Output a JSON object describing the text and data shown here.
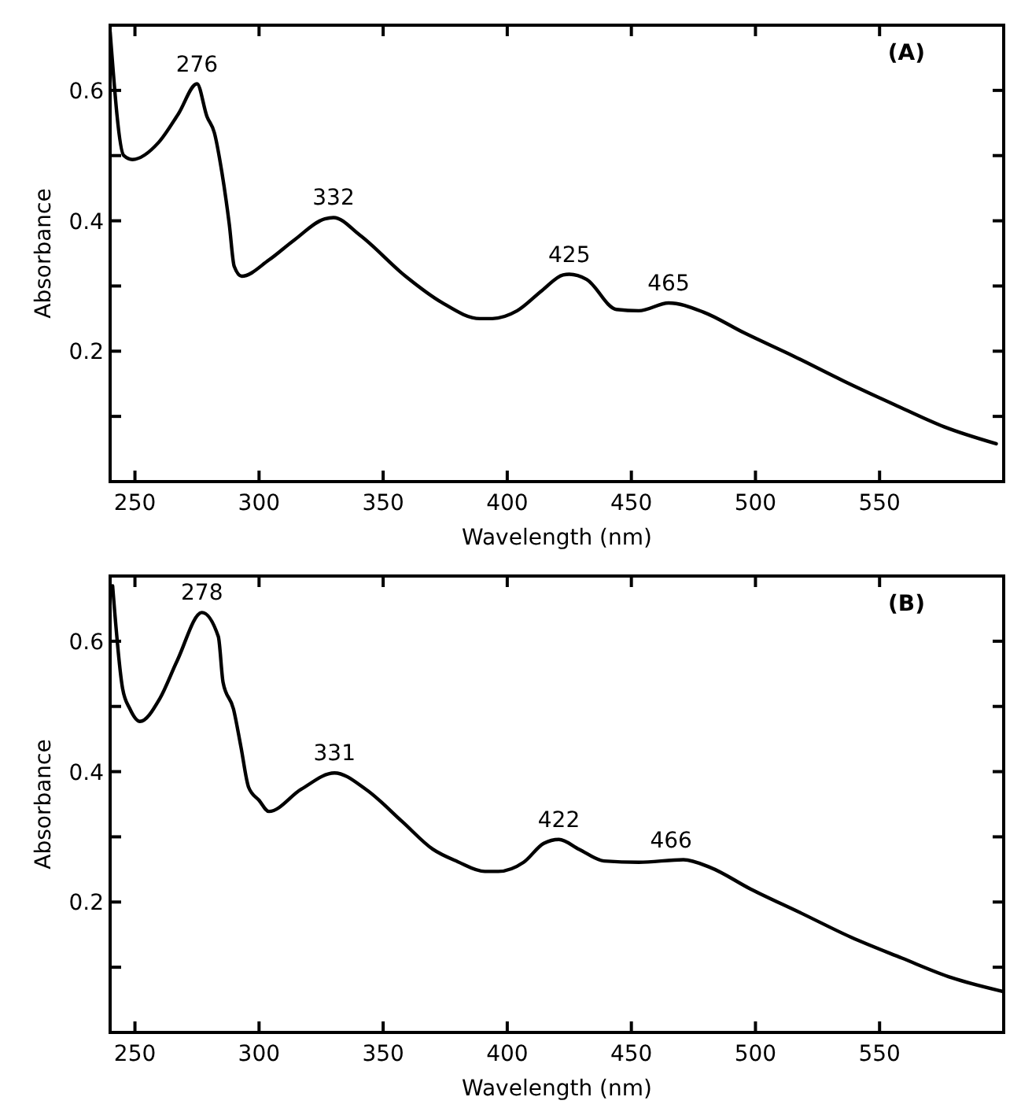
{
  "chart_data": [
    {
      "type": "line",
      "xlabel": "Wavelength (nm)",
      "ylabel": "Absorbance",
      "xlim": [
        240,
        600
      ],
      "ylim": [
        0,
        0.7
      ],
      "xticks": [
        250,
        300,
        350,
        400,
        450,
        500,
        550
      ],
      "yticks": [
        {
          "value": 0.1,
          "label": null
        },
        0.2,
        {
          "value": 0.3,
          "label": null
        },
        0.4,
        {
          "value": 0.5,
          "label": null
        },
        0.6
      ],
      "grid": false,
      "marker": "none",
      "line_style": "solid",
      "series": [
        {
          "color": "#000000",
          "x": [
            240,
            245.5,
            249,
            259.5,
            267.5,
            275,
            279,
            282,
            285,
            288,
            290,
            293,
            304,
            314,
            326.5,
            330,
            340.6,
            359,
            373.5,
            389,
            394,
            404,
            414,
            422.5,
            425,
            432,
            444,
            453,
            465,
            479,
            495.5,
            515.6,
            535.7,
            556,
            576,
            597
          ],
          "values": [
            0.69,
            0.5,
            0.494,
            0.52,
            0.564,
            0.61,
            0.56,
            0.535,
            0.475,
            0.395,
            0.33,
            0.315,
            0.34,
            0.37,
            0.403,
            0.405,
            0.378,
            0.315,
            0.275,
            0.25,
            0.25,
            0.262,
            0.293,
            0.317,
            0.318,
            0.31,
            0.264,
            0.262,
            0.274,
            0.26,
            0.228,
            0.192,
            0.154,
            0.118,
            0.084,
            0.058
          ]
        }
      ],
      "annotations": [
        {
          "text": "276",
          "x": 275,
          "y": 0.61
        },
        {
          "text": "332",
          "x": 330,
          "y": 0.405
        },
        {
          "text": "425",
          "x": 425,
          "y": 0.318
        },
        {
          "text": "465",
          "x": 465,
          "y": 0.274
        },
        "(A)"
      ]
    },
    {
      "type": "line",
      "xlabel": "Wavelength (nm)",
      "ylabel": "Absorbance",
      "xlim": [
        240,
        600
      ],
      "ylim": [
        0,
        0.7
      ],
      "xticks": [
        250,
        300,
        350,
        400,
        450,
        500,
        550
      ],
      "yticks": [
        {
          "value": 0.1,
          "label": null
        },
        0.2,
        {
          "value": 0.3,
          "label": null
        },
        0.4,
        {
          "value": 0.5,
          "label": null
        },
        0.6
      ],
      "grid": false,
      "marker": "none",
      "line_style": "solid",
      "series": [
        {
          "color": "#000000",
          "x": [
            241,
            245,
            248,
            252,
            260,
            267,
            277,
            283.6,
            285.5,
            289.7,
            292.7,
            295.8,
            300,
            304,
            317,
            330.4,
            343,
            357.8,
            370,
            380,
            391,
            396.4,
            406.6,
            414.7,
            420.8,
            428.9,
            439,
            453,
            471,
            481.8,
            498,
            518.4,
            538.5,
            559,
            579,
            599.5
          ],
          "values": [
            0.685,
            0.528,
            0.496,
            0.477,
            0.512,
            0.57,
            0.644,
            0.607,
            0.537,
            0.496,
            0.438,
            0.376,
            0.356,
            0.339,
            0.373,
            0.398,
            0.373,
            0.323,
            0.281,
            0.262,
            0.247,
            0.247,
            0.261,
            0.29,
            0.296,
            0.281,
            0.263,
            0.261,
            0.265,
            0.253,
            0.22,
            0.183,
            0.146,
            0.114,
            0.084,
            0.063
          ]
        }
      ],
      "annotations": [
        {
          "text": "278",
          "x": 277,
          "y": 0.644
        },
        {
          "text": "331",
          "x": 330.4,
          "y": 0.398
        },
        {
          "text": "422",
          "x": 420.8,
          "y": 0.296
        },
        {
          "text": "466",
          "x": 466,
          "y": 0.264
        },
        "(B)"
      ]
    }
  ]
}
